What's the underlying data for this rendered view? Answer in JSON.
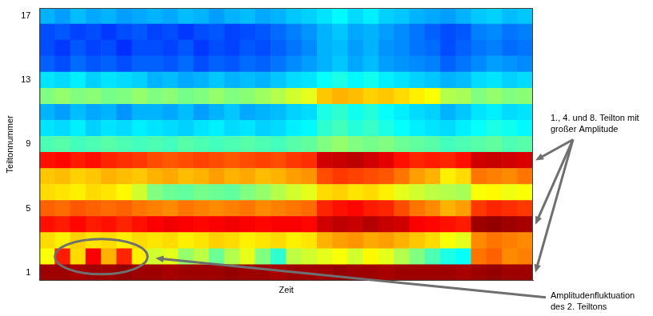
{
  "chart_data": {
    "type": "heatmap",
    "xlabel": "Zeit",
    "ylabel": "Teiltonnummer",
    "categories": [
      null,
      null,
      null,
      null,
      null,
      null,
      null,
      null,
      null,
      null,
      null,
      null,
      null,
      null,
      null,
      null,
      null,
      null,
      null,
      null,
      null,
      null,
      null,
      null,
      null,
      null,
      null,
      null,
      null,
      null,
      null,
      null
    ],
    "rows": [
      1,
      2,
      3,
      4,
      5,
      6,
      7,
      8,
      9,
      10,
      11,
      12,
      13,
      14,
      15,
      16,
      17
    ],
    "cells": [
      [
        0.97,
        0.97,
        0.96,
        0.97,
        0.97,
        0.98,
        0.97,
        0.97,
        0.96,
        0.97,
        0.97,
        0.97,
        0.98,
        0.97,
        0.97,
        0.96,
        0.97,
        0.97,
        0.97,
        0.98,
        0.97,
        0.97,
        0.96,
        0.97,
        0.97,
        0.97,
        0.97,
        0.96,
        0.97,
        0.98,
        0.97,
        0.97
      ],
      [
        0.62,
        0.85,
        0.66,
        0.88,
        0.7,
        0.84,
        0.64,
        0.58,
        0.6,
        0.52,
        0.56,
        0.48,
        0.55,
        0.6,
        0.5,
        0.42,
        0.56,
        0.58,
        0.6,
        0.62,
        0.58,
        0.63,
        0.6,
        0.55,
        0.5,
        0.45,
        0.4,
        0.38,
        0.76,
        0.78,
        0.74,
        0.75
      ],
      [
        0.66,
        0.64,
        0.67,
        0.65,
        0.66,
        0.64,
        0.66,
        0.65,
        0.66,
        0.64,
        0.65,
        0.67,
        0.66,
        0.64,
        0.65,
        0.66,
        0.64,
        0.65,
        0.7,
        0.72,
        0.73,
        0.71,
        0.72,
        0.7,
        0.68,
        0.66,
        0.62,
        0.6,
        0.74,
        0.76,
        0.75,
        0.74
      ],
      [
        0.86,
        0.85,
        0.87,
        0.85,
        0.86,
        0.84,
        0.86,
        0.88,
        0.89,
        0.88,
        0.87,
        0.88,
        0.89,
        0.88,
        0.87,
        0.88,
        0.88,
        0.87,
        0.92,
        0.94,
        0.93,
        0.95,
        0.93,
        0.92,
        0.88,
        0.87,
        0.86,
        0.85,
        0.97,
        0.98,
        0.97,
        0.96
      ],
      [
        0.78,
        0.77,
        0.79,
        0.78,
        0.77,
        0.78,
        0.76,
        0.75,
        0.74,
        0.76,
        0.75,
        0.74,
        0.75,
        0.76,
        0.74,
        0.75,
        0.76,
        0.77,
        0.84,
        0.86,
        0.87,
        0.85,
        0.84,
        0.8,
        0.76,
        0.74,
        0.7,
        0.72,
        0.82,
        0.84,
        0.83,
        0.82
      ],
      [
        0.66,
        0.65,
        0.64,
        0.66,
        0.65,
        0.63,
        0.58,
        0.5,
        0.48,
        0.47,
        0.49,
        0.48,
        0.47,
        0.5,
        0.52,
        0.55,
        0.58,
        0.6,
        0.66,
        0.67,
        0.65,
        0.66,
        0.64,
        0.6,
        0.58,
        0.56,
        0.55,
        0.54,
        0.62,
        0.63,
        0.61,
        0.62
      ],
      [
        0.68,
        0.69,
        0.67,
        0.68,
        0.7,
        0.69,
        0.68,
        0.7,
        0.71,
        0.69,
        0.7,
        0.72,
        0.7,
        0.71,
        0.69,
        0.7,
        0.72,
        0.73,
        0.8,
        0.82,
        0.81,
        0.8,
        0.79,
        0.76,
        0.72,
        0.7,
        0.64,
        0.66,
        0.76,
        0.75,
        0.74,
        0.76
      ],
      [
        0.86,
        0.87,
        0.85,
        0.86,
        0.84,
        0.83,
        0.82,
        0.8,
        0.79,
        0.8,
        0.81,
        0.8,
        0.79,
        0.8,
        0.81,
        0.8,
        0.82,
        0.83,
        0.92,
        0.93,
        0.94,
        0.92,
        0.9,
        0.86,
        0.84,
        0.85,
        0.84,
        0.86,
        0.92,
        0.93,
        0.92,
        0.91
      ],
      [
        0.45,
        0.46,
        0.44,
        0.45,
        0.46,
        0.45,
        0.44,
        0.45,
        0.44,
        0.46,
        0.45,
        0.44,
        0.45,
        0.46,
        0.45,
        0.44,
        0.46,
        0.47,
        0.5,
        0.52,
        0.5,
        0.49,
        0.5,
        0.48,
        0.47,
        0.46,
        0.44,
        0.45,
        0.46,
        0.47,
        0.45,
        0.46
      ],
      [
        0.35,
        0.34,
        0.36,
        0.33,
        0.35,
        0.34,
        0.36,
        0.35,
        0.34,
        0.33,
        0.35,
        0.36,
        0.34,
        0.35,
        0.33,
        0.34,
        0.36,
        0.37,
        0.42,
        0.44,
        0.41,
        0.43,
        0.4,
        0.38,
        0.36,
        0.35,
        0.34,
        0.36,
        0.38,
        0.4,
        0.39,
        0.37
      ],
      [
        0.3,
        0.28,
        0.31,
        0.29,
        0.3,
        0.27,
        0.3,
        0.3,
        0.29,
        0.31,
        0.28,
        0.3,
        0.32,
        0.29,
        0.3,
        0.31,
        0.33,
        0.34,
        0.4,
        0.42,
        0.39,
        0.41,
        0.38,
        0.36,
        0.34,
        0.33,
        0.3,
        0.32,
        0.35,
        0.36,
        0.34,
        0.35
      ],
      [
        0.5,
        0.52,
        0.5,
        0.51,
        0.49,
        0.5,
        0.52,
        0.5,
        0.51,
        0.49,
        0.5,
        0.52,
        0.5,
        0.51,
        0.53,
        0.55,
        0.58,
        0.6,
        0.68,
        0.7,
        0.69,
        0.67,
        0.68,
        0.66,
        0.64,
        0.62,
        0.55,
        0.54,
        0.5,
        0.52,
        0.5,
        0.51
      ],
      [
        0.35,
        0.34,
        0.36,
        0.33,
        0.35,
        0.34,
        0.33,
        0.3,
        0.31,
        0.29,
        0.3,
        0.32,
        0.3,
        0.31,
        0.3,
        0.32,
        0.34,
        0.35,
        0.38,
        0.4,
        0.37,
        0.39,
        0.36,
        0.35,
        0.33,
        0.32,
        0.3,
        0.31,
        0.34,
        0.35,
        0.33,
        0.34
      ],
      [
        0.22,
        0.2,
        0.23,
        0.21,
        0.22,
        0.2,
        0.22,
        0.22,
        0.21,
        0.23,
        0.2,
        0.22,
        0.21,
        0.23,
        0.22,
        0.24,
        0.26,
        0.28,
        0.3,
        0.32,
        0.29,
        0.31,
        0.28,
        0.27,
        0.26,
        0.25,
        0.22,
        0.24,
        0.26,
        0.28,
        0.27,
        0.26
      ],
      [
        0.2,
        0.18,
        0.21,
        0.19,
        0.2,
        0.17,
        0.2,
        0.2,
        0.19,
        0.21,
        0.18,
        0.2,
        0.19,
        0.21,
        0.2,
        0.22,
        0.24,
        0.26,
        0.3,
        0.31,
        0.28,
        0.3,
        0.27,
        0.26,
        0.24,
        0.23,
        0.2,
        0.22,
        0.24,
        0.25,
        0.23,
        0.24
      ],
      [
        0.2,
        0.21,
        0.19,
        0.2,
        0.18,
        0.2,
        0.21,
        0.19,
        0.2,
        0.18,
        0.2,
        0.21,
        0.19,
        0.2,
        0.21,
        0.23,
        0.25,
        0.27,
        0.3,
        0.32,
        0.29,
        0.3,
        0.28,
        0.26,
        0.24,
        0.22,
        0.2,
        0.21,
        0.25,
        0.26,
        0.24,
        0.25
      ],
      [
        0.3,
        0.28,
        0.31,
        0.29,
        0.3,
        0.28,
        0.29,
        0.3,
        0.29,
        0.31,
        0.3,
        0.28,
        0.3,
        0.31,
        0.29,
        0.3,
        0.32,
        0.33,
        0.35,
        0.37,
        0.34,
        0.36,
        0.33,
        0.32,
        0.3,
        0.29,
        0.28,
        0.3,
        0.32,
        0.33,
        0.31,
        0.32
      ]
    ],
    "zlim": [
      0,
      1
    ],
    "ylim": [
      0.5,
      17.5
    ],
    "yticks": [
      1,
      5,
      9,
      13,
      17
    ],
    "grid": false,
    "tick_labels": "y",
    "annotations": [
      {
        "text": "1., 4. und 8. Teilton mit großer Amplitude",
        "rows": [
          1,
          4,
          8
        ]
      },
      {
        "text": "Amplitudenfluktuation des 2. Teiltons",
        "rows": [
          2
        ],
        "columns": [
          1,
          6
        ]
      }
    ]
  }
}
